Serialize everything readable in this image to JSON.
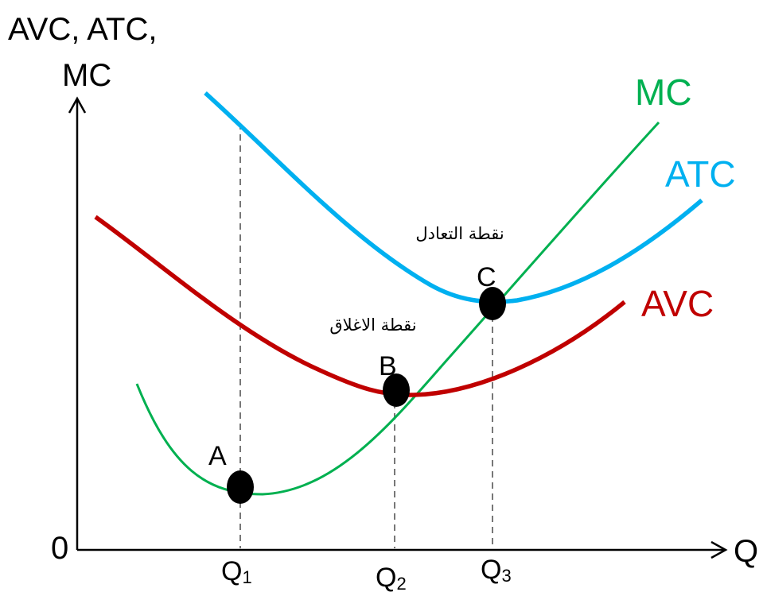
{
  "y_axis_label_line1": "AVC, ATC,",
  "y_axis_label_line2": "MC",
  "x_axis_label": "Q",
  "origin_label": "0",
  "curves": {
    "mc": {
      "label": "MC",
      "color": "#00B050"
    },
    "atc": {
      "label": "ATC",
      "color": "#00B0F0"
    },
    "avc": {
      "label": "AVC",
      "color": "#C00000"
    }
  },
  "points": {
    "a": {
      "label": "A"
    },
    "b": {
      "label": "B"
    },
    "c": {
      "label": "C"
    }
  },
  "annotations": {
    "equilibrium_point": "نقطة التعادل",
    "shutdown_point": "نقطة الاغلاق"
  },
  "x_ticks": [
    {
      "main": "Q",
      "sub": "1"
    },
    {
      "main": "Q",
      "sub": "2"
    },
    {
      "main": "Q",
      "sub": "3"
    }
  ]
}
